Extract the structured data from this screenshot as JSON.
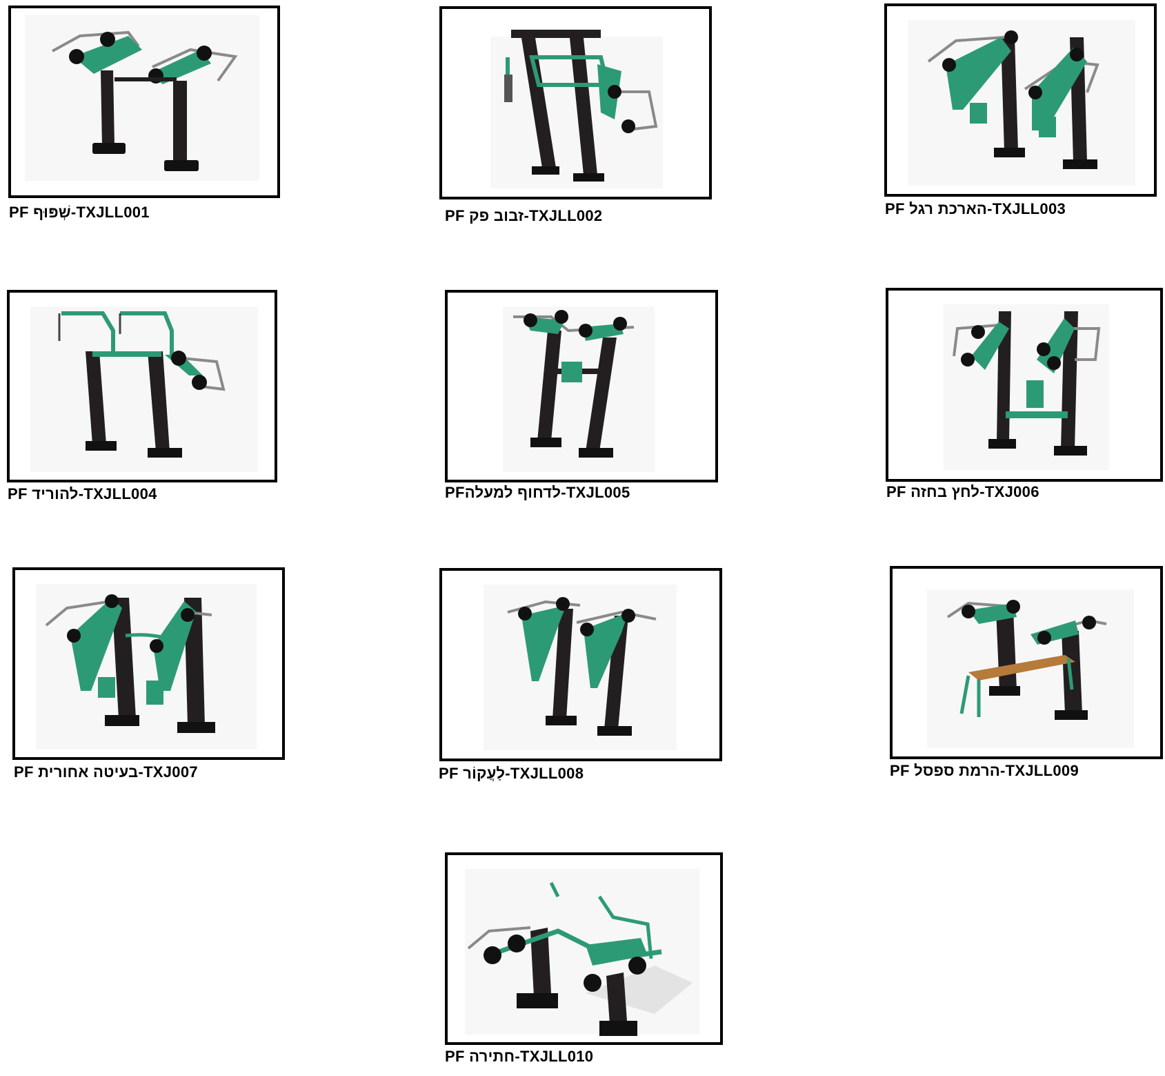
{
  "colors": {
    "frame_green": "#2d9a76",
    "frame_green_dark": "#1f6e55",
    "post": "#231f20",
    "weight": "#111111",
    "handle": "#8a8a8a",
    "seat_wood": "#b67a3a"
  },
  "items": [
    {
      "caption": "PF שְׁפּוּף-TXJLL001",
      "icon": "equipment-shoulder-press-icon"
    },
    {
      "caption": "PF זבוב פק-TXJLL002",
      "icon": "equipment-pec-fly-icon"
    },
    {
      "caption": "PF הארכת רגל-TXJLL003",
      "icon": "equipment-leg-extension-icon"
    },
    {
      "caption": "PF להוריד-TXJLL004",
      "icon": "equipment-lat-pulldown-icon"
    },
    {
      "caption": "PFלדחוף למעלה-TXJL005",
      "icon": "equipment-push-up-icon"
    },
    {
      "caption": "PF לחץ בחזה-TXJ006",
      "icon": "equipment-chest-press-icon"
    },
    {
      "caption": "PF בעיטה אחורית-TXJ007",
      "icon": "equipment-back-kick-icon"
    },
    {
      "caption": "PF לַעֲקוֹר-TXJLL008",
      "icon": "equipment-row-icon"
    },
    {
      "caption": "PF הרמת ספסל-TXJLL009",
      "icon": "equipment-bench-press-icon"
    },
    {
      "caption": "PF חתירה-TXJLL010",
      "icon": "equipment-rowing-icon"
    }
  ]
}
